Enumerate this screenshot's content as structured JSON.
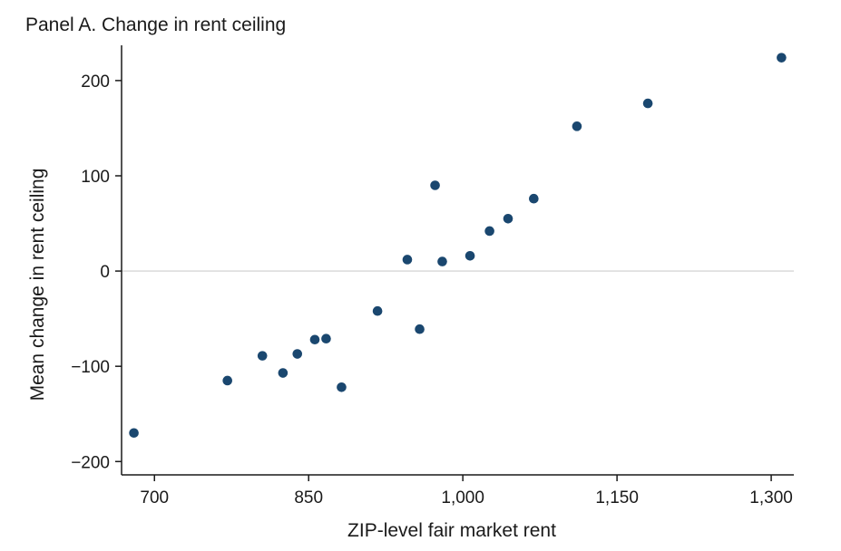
{
  "chart_data": {
    "type": "scatter",
    "title": "Panel A. Change in rent ceiling",
    "xlabel": "ZIP-level fair market rent",
    "ylabel": "Mean change in rent ceiling",
    "xlim": [
      668,
      1322
    ],
    "ylim": [
      -214,
      237
    ],
    "grid": false,
    "legend": "none",
    "reference_line_y": 0,
    "x_ticks": [
      {
        "v": 700,
        "label": "700"
      },
      {
        "v": 850,
        "label": "850"
      },
      {
        "v": 1000,
        "label": "1,000"
      },
      {
        "v": 1150,
        "label": "1,150"
      },
      {
        "v": 1300,
        "label": "1,300"
      }
    ],
    "y_ticks": [
      {
        "v": 200,
        "label": "200"
      },
      {
        "v": 100,
        "label": "100"
      },
      {
        "v": 0,
        "label": "0"
      },
      {
        "v": -100,
        "label": "−100"
      },
      {
        "v": -200,
        "label": "−200"
      }
    ],
    "points": [
      [
        680,
        -170
      ],
      [
        771,
        -115
      ],
      [
        805,
        -89
      ],
      [
        825,
        -107
      ],
      [
        839,
        -87
      ],
      [
        856,
        -72
      ],
      [
        867,
        -71
      ],
      [
        882,
        -122
      ],
      [
        917,
        -42
      ],
      [
        946,
        12
      ],
      [
        958,
        -61
      ],
      [
        973,
        90
      ],
      [
        980,
        10
      ],
      [
        1007,
        16
      ],
      [
        1026,
        42
      ],
      [
        1044,
        55
      ],
      [
        1069,
        76
      ],
      [
        1111,
        152
      ],
      [
        1180,
        176
      ],
      [
        1310,
        224
      ]
    ],
    "colors": {
      "marker": "#1a476f",
      "zero_line": "#d6d6d6",
      "axis": "#1a1a1a",
      "text": "#1a1a1a",
      "background": "#ffffff"
    }
  }
}
